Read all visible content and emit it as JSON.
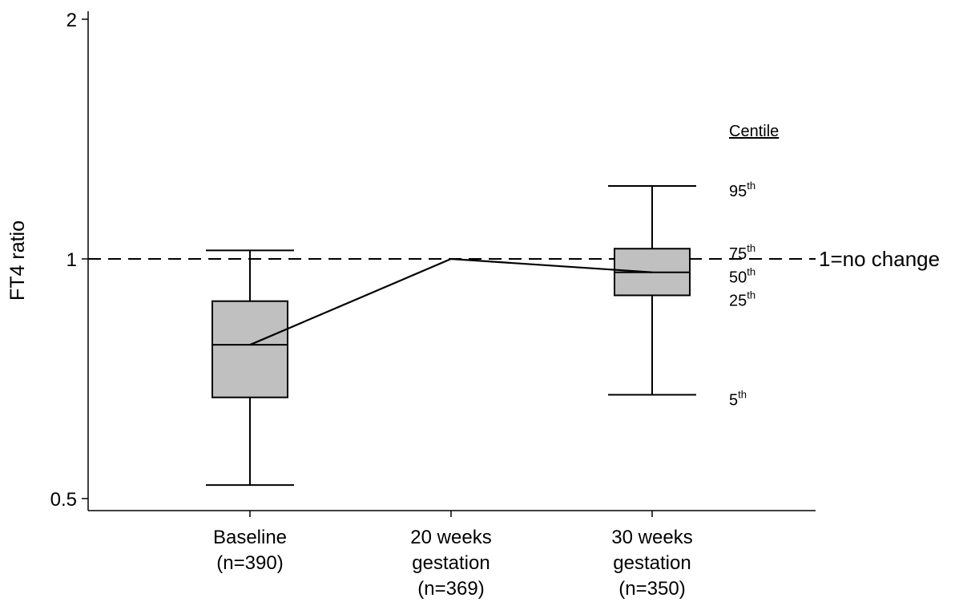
{
  "chart_data": {
    "type": "box",
    "ylabel": "FT4  ratio",
    "y_scale": "log",
    "ylim": [
      0.49,
      2.05
    ],
    "yticks": [
      {
        "value": 0.5,
        "label": "0.5"
      },
      {
        "value": 1,
        "label": "1"
      },
      {
        "value": 2,
        "label": "2"
      }
    ],
    "categories": [
      {
        "lines": [
          "Baseline",
          "(n=390)"
        ]
      },
      {
        "lines": [
          "20 weeks",
          "gestation",
          "(n=369)"
        ]
      },
      {
        "lines": [
          "30 weeks",
          "gestation",
          "(n=350)"
        ]
      }
    ],
    "boxes": [
      {
        "category_index": 0,
        "p5": 0.52,
        "p25": 0.67,
        "p50": 0.78,
        "p75": 0.885,
        "p95": 1.025
      },
      {
        "category_index": 2,
        "p5": 0.675,
        "p25": 0.9,
        "p50": 0.962,
        "p75": 1.03,
        "p95": 1.235
      }
    ],
    "median_line": [
      0.78,
      1.0,
      0.962
    ],
    "reference_line": {
      "value": 1,
      "label": "1=no change",
      "style": "dashed"
    },
    "centile_legend": {
      "title": "Centile",
      "entries": [
        {
          "base": "95",
          "sup": "th",
          "value": 1.235
        },
        {
          "base": "75",
          "sup": "th",
          "value": 1.03
        },
        {
          "base": "50",
          "sup": "th",
          "value": 0.962
        },
        {
          "base": "25",
          "sup": "th",
          "value": 0.9
        },
        {
          "base": "5",
          "sup": "th",
          "value": 0.675
        }
      ]
    },
    "colors": {
      "box_fill": "#c0c0c0",
      "line": "#000000"
    }
  }
}
